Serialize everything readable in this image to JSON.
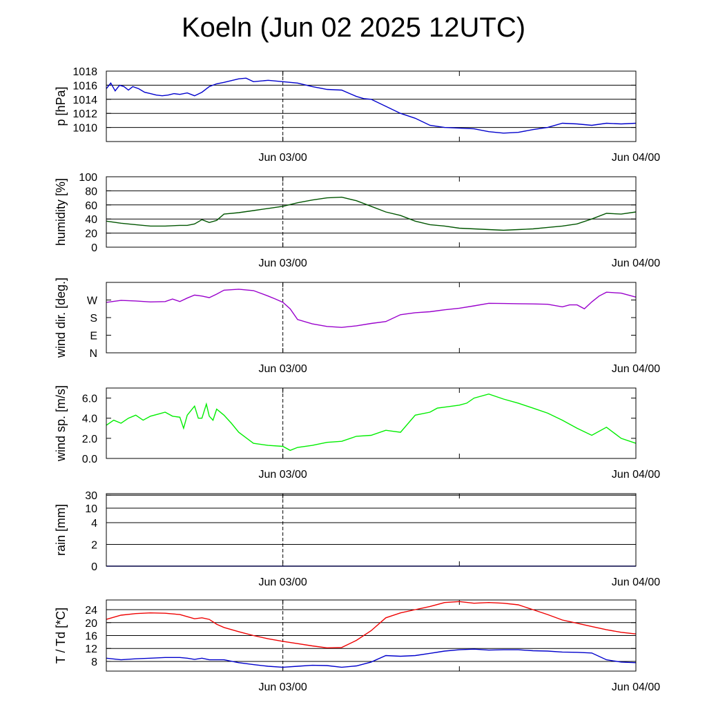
{
  "title": "Koeln (Jun 02 2025 12UTC)",
  "colors": {
    "pressure": "#0000cc",
    "humidity": "#005500",
    "wind_dir": "#9900cc",
    "wind_speed": "#00ee00",
    "temperature": "#ee0000",
    "dewpoint": "#0000cc"
  },
  "chart_data": [
    {
      "type": "line",
      "ylabel": "p [hPa]",
      "x_tick_labels": [
        "Jun 03/00",
        "Jun 04/00"
      ],
      "x_range_hours": [
        0,
        36
      ],
      "ylim": [
        1008,
        1018
      ],
      "yticks": [
        1010,
        1012,
        1014,
        1016,
        1018
      ],
      "grid": true,
      "series": [
        {
          "color_key": "pressure",
          "x": [
            0,
            0.3,
            0.6,
            0.9,
            1.2,
            1.5,
            1.8,
            2.2,
            2.6,
            3.0,
            3.4,
            3.8,
            4.2,
            4.6,
            5.0,
            5.5,
            6.0,
            6.5,
            7.0,
            7.5,
            8.0,
            9.0,
            9.5,
            10.0,
            10.5,
            11.0,
            12.0,
            13.0,
            14.0,
            15.0,
            16.0,
            17.0,
            17.5,
            18.0,
            19.0,
            20.0,
            21.0,
            22.0,
            23.0,
            24.0,
            25.0,
            26.0,
            27.0,
            28.0,
            29.0,
            30.0,
            31.0,
            32.0,
            33.0,
            34.0,
            35.0,
            36.0
          ],
          "y": [
            1015.5,
            1016.3,
            1015.2,
            1016.0,
            1015.8,
            1015.3,
            1015.8,
            1015.5,
            1015.0,
            1014.8,
            1014.6,
            1014.5,
            1014.6,
            1014.8,
            1014.7,
            1014.9,
            1014.5,
            1015.0,
            1015.8,
            1016.2,
            1016.4,
            1016.9,
            1017.0,
            1016.5,
            1016.6,
            1016.7,
            1016.5,
            1016.3,
            1015.8,
            1015.4,
            1015.3,
            1014.4,
            1014.1,
            1014.0,
            1013.0,
            1012.0,
            1011.3,
            1010.3,
            1010.0,
            1009.9,
            1009.8,
            1009.4,
            1009.2,
            1009.3,
            1009.7,
            1010.0,
            1010.6,
            1010.5,
            1010.3,
            1010.6,
            1010.5,
            1010.6
          ]
        }
      ]
    },
    {
      "type": "line",
      "ylabel": "humidity [%]",
      "x_tick_labels": [
        "Jun 03/00",
        "Jun 04/00"
      ],
      "x_range_hours": [
        0,
        36
      ],
      "ylim": [
        0,
        100
      ],
      "yticks": [
        0,
        20,
        40,
        60,
        80,
        100
      ],
      "grid": true,
      "series": [
        {
          "color_key": "humidity",
          "x": [
            0,
            1,
            2,
            3,
            4,
            5,
            5.5,
            6,
            6.5,
            7,
            7.5,
            8,
            9,
            10,
            11,
            12,
            13,
            14,
            15,
            16,
            17,
            18,
            19,
            20,
            21,
            22,
            23,
            24,
            25,
            26,
            27,
            28,
            29,
            30,
            31,
            32,
            33,
            34,
            35,
            36
          ],
          "y": [
            37,
            34,
            32,
            30,
            30,
            31,
            31,
            33,
            39,
            35,
            38,
            47,
            49,
            52,
            55,
            58,
            63,
            67,
            70,
            71,
            66,
            58,
            50,
            45,
            37,
            32,
            30,
            27,
            26,
            25,
            24,
            25,
            26,
            28,
            30,
            33,
            40,
            48,
            47,
            50
          ]
        }
      ]
    },
    {
      "type": "line",
      "ylabel": "wind dir. [deg.]",
      "x_tick_labels": [
        "Jun 03/00",
        "Jun 04/00"
      ],
      "x_range_hours": [
        0,
        36
      ],
      "ylim": [
        0,
        360
      ],
      "yticks": [
        0,
        90,
        180,
        270
      ],
      "ytick_labels": [
        "N",
        "E",
        "S",
        "W"
      ],
      "grid": false,
      "series": [
        {
          "color_key": "wind_dir",
          "x": [
            0,
            1,
            2,
            3,
            4,
            4.5,
            5,
            5.5,
            6,
            6.5,
            7,
            7.5,
            8,
            9,
            10,
            11,
            11.5,
            12,
            12.5,
            13,
            14,
            15,
            16,
            17,
            18,
            19,
            20,
            21,
            22,
            23,
            24,
            25,
            26,
            27,
            28,
            29,
            30,
            31,
            31.5,
            32,
            32.5,
            33,
            33.5,
            34,
            35,
            36
          ],
          "y": [
            258,
            268,
            265,
            260,
            262,
            275,
            262,
            280,
            295,
            290,
            282,
            300,
            320,
            325,
            318,
            290,
            275,
            258,
            225,
            170,
            148,
            135,
            130,
            138,
            150,
            160,
            195,
            205,
            210,
            220,
            228,
            240,
            253,
            252,
            251,
            250,
            248,
            235,
            245,
            245,
            225,
            260,
            290,
            310,
            305,
            285
          ]
        }
      ]
    },
    {
      "type": "line",
      "ylabel": "wind sp. [m/s]",
      "x_tick_labels": [
        "Jun 03/00",
        "Jun 04/00"
      ],
      "x_range_hours": [
        0,
        36
      ],
      "ylim": [
        0,
        7
      ],
      "yticks": [
        0.0,
        2.0,
        4.0,
        6.0
      ],
      "ytick_labels": [
        "0.0",
        "2.0",
        "4.0",
        "6.0"
      ],
      "grid": false,
      "series": [
        {
          "color_key": "wind_speed",
          "x": [
            0,
            0.5,
            1,
            1.5,
            2,
            2.5,
            3,
            3.5,
            4,
            4.5,
            5,
            5.25,
            5.5,
            6,
            6.25,
            6.5,
            6.8,
            7,
            7.25,
            7.5,
            8,
            8.5,
            9,
            10,
            11,
            12,
            12.5,
            13,
            14,
            15,
            16,
            17,
            18,
            19,
            19.5,
            20,
            21,
            22,
            22.5,
            23,
            24,
            24.5,
            25,
            26,
            27,
            28,
            29,
            30,
            31,
            32,
            33,
            34,
            35,
            36
          ],
          "y": [
            3.3,
            3.8,
            3.5,
            4.0,
            4.3,
            3.8,
            4.2,
            4.4,
            4.6,
            4.2,
            4.1,
            3.0,
            4.3,
            5.2,
            4.0,
            4.0,
            5.4,
            4.2,
            3.8,
            4.9,
            4.3,
            3.5,
            2.6,
            1.5,
            1.3,
            1.2,
            0.8,
            1.1,
            1.3,
            1.6,
            1.7,
            2.2,
            2.3,
            2.8,
            2.7,
            2.6,
            4.3,
            4.6,
            5.0,
            5.1,
            5.3,
            5.5,
            6.0,
            6.4,
            5.9,
            5.5,
            5.0,
            4.5,
            3.8,
            3.0,
            2.3,
            3.1,
            2.0,
            1.5
          ]
        }
      ]
    },
    {
      "type": "line",
      "ylabel": "rain [mm]",
      "x_tick_labels": [
        "Jun 03/00",
        "Jun 04/00"
      ],
      "x_range_hours": [
        0,
        36
      ],
      "yticks": [
        0,
        2,
        4,
        10,
        30
      ],
      "ytick_labels": [
        "0",
        "2",
        "4",
        "10",
        "30"
      ],
      "grid": true,
      "series": [
        {
          "color_key": "pressure",
          "x": [
            0,
            36
          ],
          "y": [
            0,
            0
          ]
        }
      ]
    },
    {
      "type": "line",
      "ylabel": "T / Td [*C]",
      "x_tick_labels": [
        "Jun 03/00",
        "Jun 04/00"
      ],
      "x_range_hours": [
        0,
        36
      ],
      "ylim": [
        5,
        27
      ],
      "yticks": [
        8,
        12,
        16,
        20,
        24
      ],
      "grid": true,
      "series": [
        {
          "color_key": "temperature",
          "x": [
            0,
            1,
            2,
            3,
            4,
            5,
            6,
            6.5,
            7,
            7.5,
            8,
            9,
            10,
            11,
            12,
            13,
            14,
            15,
            16,
            17,
            18,
            19,
            20,
            21,
            22,
            23,
            24,
            25,
            26,
            27,
            28,
            29,
            30,
            31,
            32,
            33,
            34,
            35,
            36
          ],
          "y": [
            21,
            22.3,
            22.8,
            23,
            22.9,
            22.5,
            21.2,
            21.5,
            21,
            19.5,
            18.5,
            17.2,
            16,
            15,
            14.2,
            13.5,
            12.8,
            12.2,
            12.3,
            14.5,
            17.5,
            21.5,
            23,
            24,
            25,
            26.2,
            26.5,
            26,
            26.2,
            26,
            25.5,
            24,
            22.5,
            20.8,
            19.8,
            18.8,
            17.8,
            17,
            16.5
          ]
        },
        {
          "color_key": "dewpoint",
          "x": [
            0,
            1,
            2,
            3,
            4,
            5,
            5.5,
            6,
            6.5,
            7,
            8,
            9,
            10,
            11,
            12,
            13,
            14,
            15,
            16,
            17,
            18,
            19,
            20,
            21,
            22,
            23,
            24,
            25,
            26,
            27,
            28,
            29,
            30,
            31,
            32,
            33,
            34,
            35,
            36
          ],
          "y": [
            9,
            8.5,
            8.8,
            9,
            9.2,
            9.2,
            9,
            8.6,
            9,
            8.5,
            8.5,
            7.6,
            7,
            6.5,
            6.2,
            6.5,
            6.8,
            6.7,
            6.2,
            6.6,
            7.8,
            9.8,
            9.6,
            9.8,
            10.5,
            11.2,
            11.6,
            11.8,
            11.5,
            11.6,
            11.6,
            11.3,
            11.2,
            10.9,
            10.8,
            10.6,
            8.5,
            7.8,
            7.6
          ]
        }
      ]
    }
  ]
}
